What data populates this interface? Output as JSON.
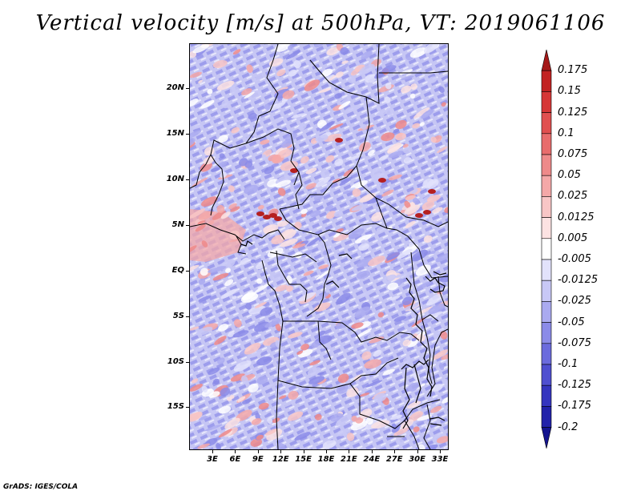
{
  "title": "Vertical velocity [m/s] at 500hPa, VT: 2019061106",
  "footer": "GrADS: IGES/COLA",
  "map": {
    "lat_labels": [
      "20N",
      "15N",
      "10N",
      "5N",
      "EQ",
      "5S",
      "10S",
      "15S"
    ],
    "lon_labels": [
      "3E",
      "6E",
      "9E",
      "12E",
      "15E",
      "18E",
      "21E",
      "24E",
      "27E",
      "30E",
      "33E"
    ]
  },
  "colorbar": {
    "levels": [
      "0.175",
      "0.15",
      "0.125",
      "0.1",
      "0.075",
      "0.05",
      "0.025",
      "0.0125",
      "0.005",
      "-0.005",
      "-0.0125",
      "-0.025",
      "-0.05",
      "-0.075",
      "-0.1",
      "-0.125",
      "-0.175",
      "-0.2"
    ],
    "colors": [
      "#a51919",
      "#c22222",
      "#d63636",
      "#e04f4f",
      "#e86c6c",
      "#ee8a8a",
      "#f4a8a8",
      "#f8c6c6",
      "#fce2e2",
      "#ffffff",
      "#e2e2fb",
      "#c8c8f6",
      "#aaaaf0",
      "#8b8be8",
      "#6b6bdd",
      "#4f4fd0",
      "#3535bf",
      "#2222aa",
      "#14148f"
    ]
  }
}
